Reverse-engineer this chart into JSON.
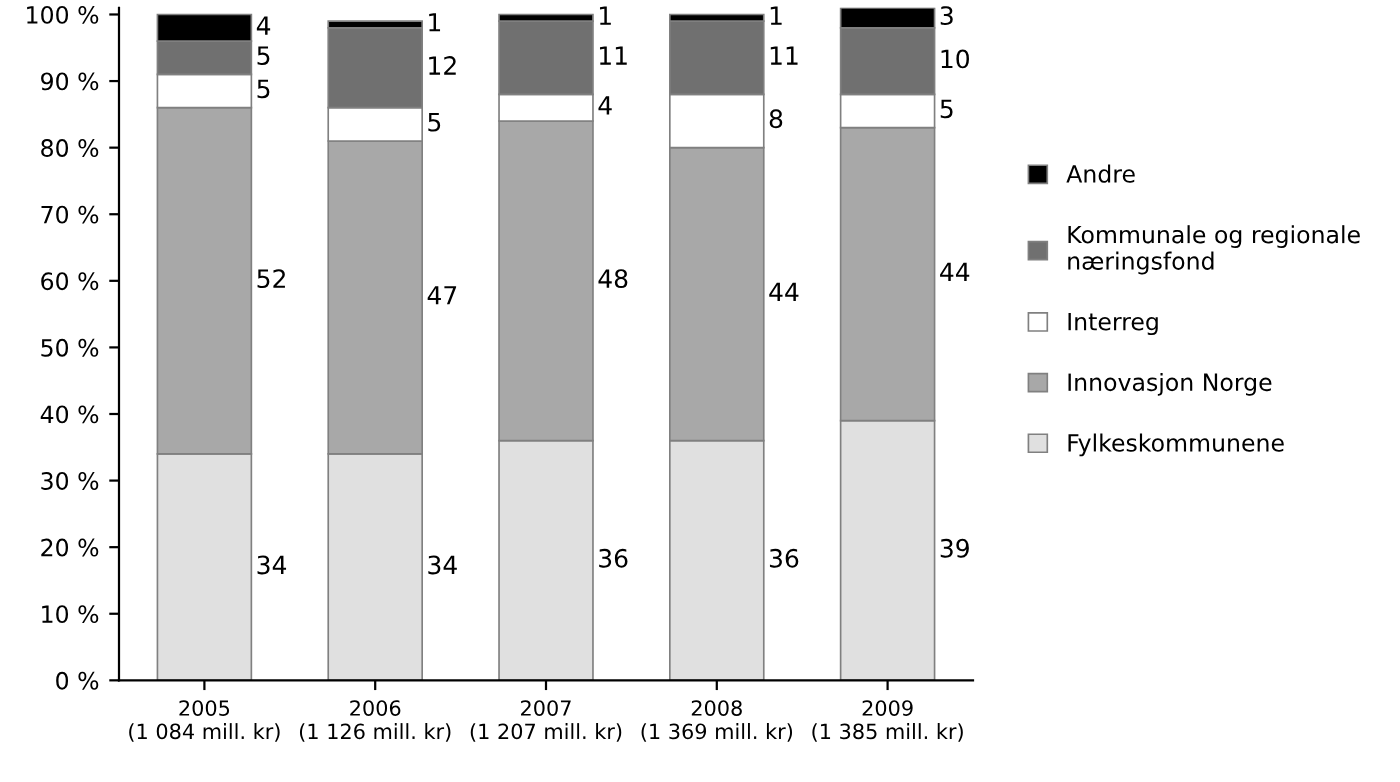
{
  "chart_data": {
    "type": "bar",
    "stacked": true,
    "data_labels": true,
    "legend": "right",
    "grid": false,
    "categories": [
      "2005\n(1 084 mill. kr)",
      "2006\n(1 126 mill. kr)",
      "2007\n(1 207 mill. kr)",
      "2008\n(1 369 mill. kr)",
      "2009\n(1 385 mill. kr)"
    ],
    "series": [
      {
        "name": "Fylkeskommunene",
        "color": "#e0e0e0",
        "values": [
          34,
          34,
          36,
          36,
          39
        ]
      },
      {
        "name": "Innovasjon Norge",
        "color": "#a8a8a8",
        "values": [
          52,
          47,
          48,
          44,
          44
        ]
      },
      {
        "name": "Interreg",
        "color": "#ffffff",
        "values": [
          5,
          5,
          4,
          8,
          5
        ]
      },
      {
        "name": "Kommunale og regionale\nnæringsfond",
        "color": "#707070",
        "values": [
          5,
          12,
          11,
          11,
          10
        ]
      },
      {
        "name": "Andre",
        "color": "#000000",
        "values": [
          4,
          1,
          1,
          1,
          3
        ]
      }
    ],
    "ylim": [
      0,
      101
    ],
    "yticks": [
      {
        "value": 0,
        "label": "0 %"
      },
      {
        "value": 10,
        "label": "10 %"
      },
      {
        "value": 20,
        "label": "20 %"
      },
      {
        "value": 30,
        "label": "30 %"
      },
      {
        "value": 40,
        "label": "40 %"
      },
      {
        "value": 50,
        "label": "50 %"
      },
      {
        "value": 60,
        "label": "60 %"
      },
      {
        "value": 70,
        "label": "70 %"
      },
      {
        "value": 80,
        "label": "80 %"
      },
      {
        "value": 90,
        "label": "90 %"
      },
      {
        "value": 100,
        "label": "100 %"
      }
    ]
  }
}
